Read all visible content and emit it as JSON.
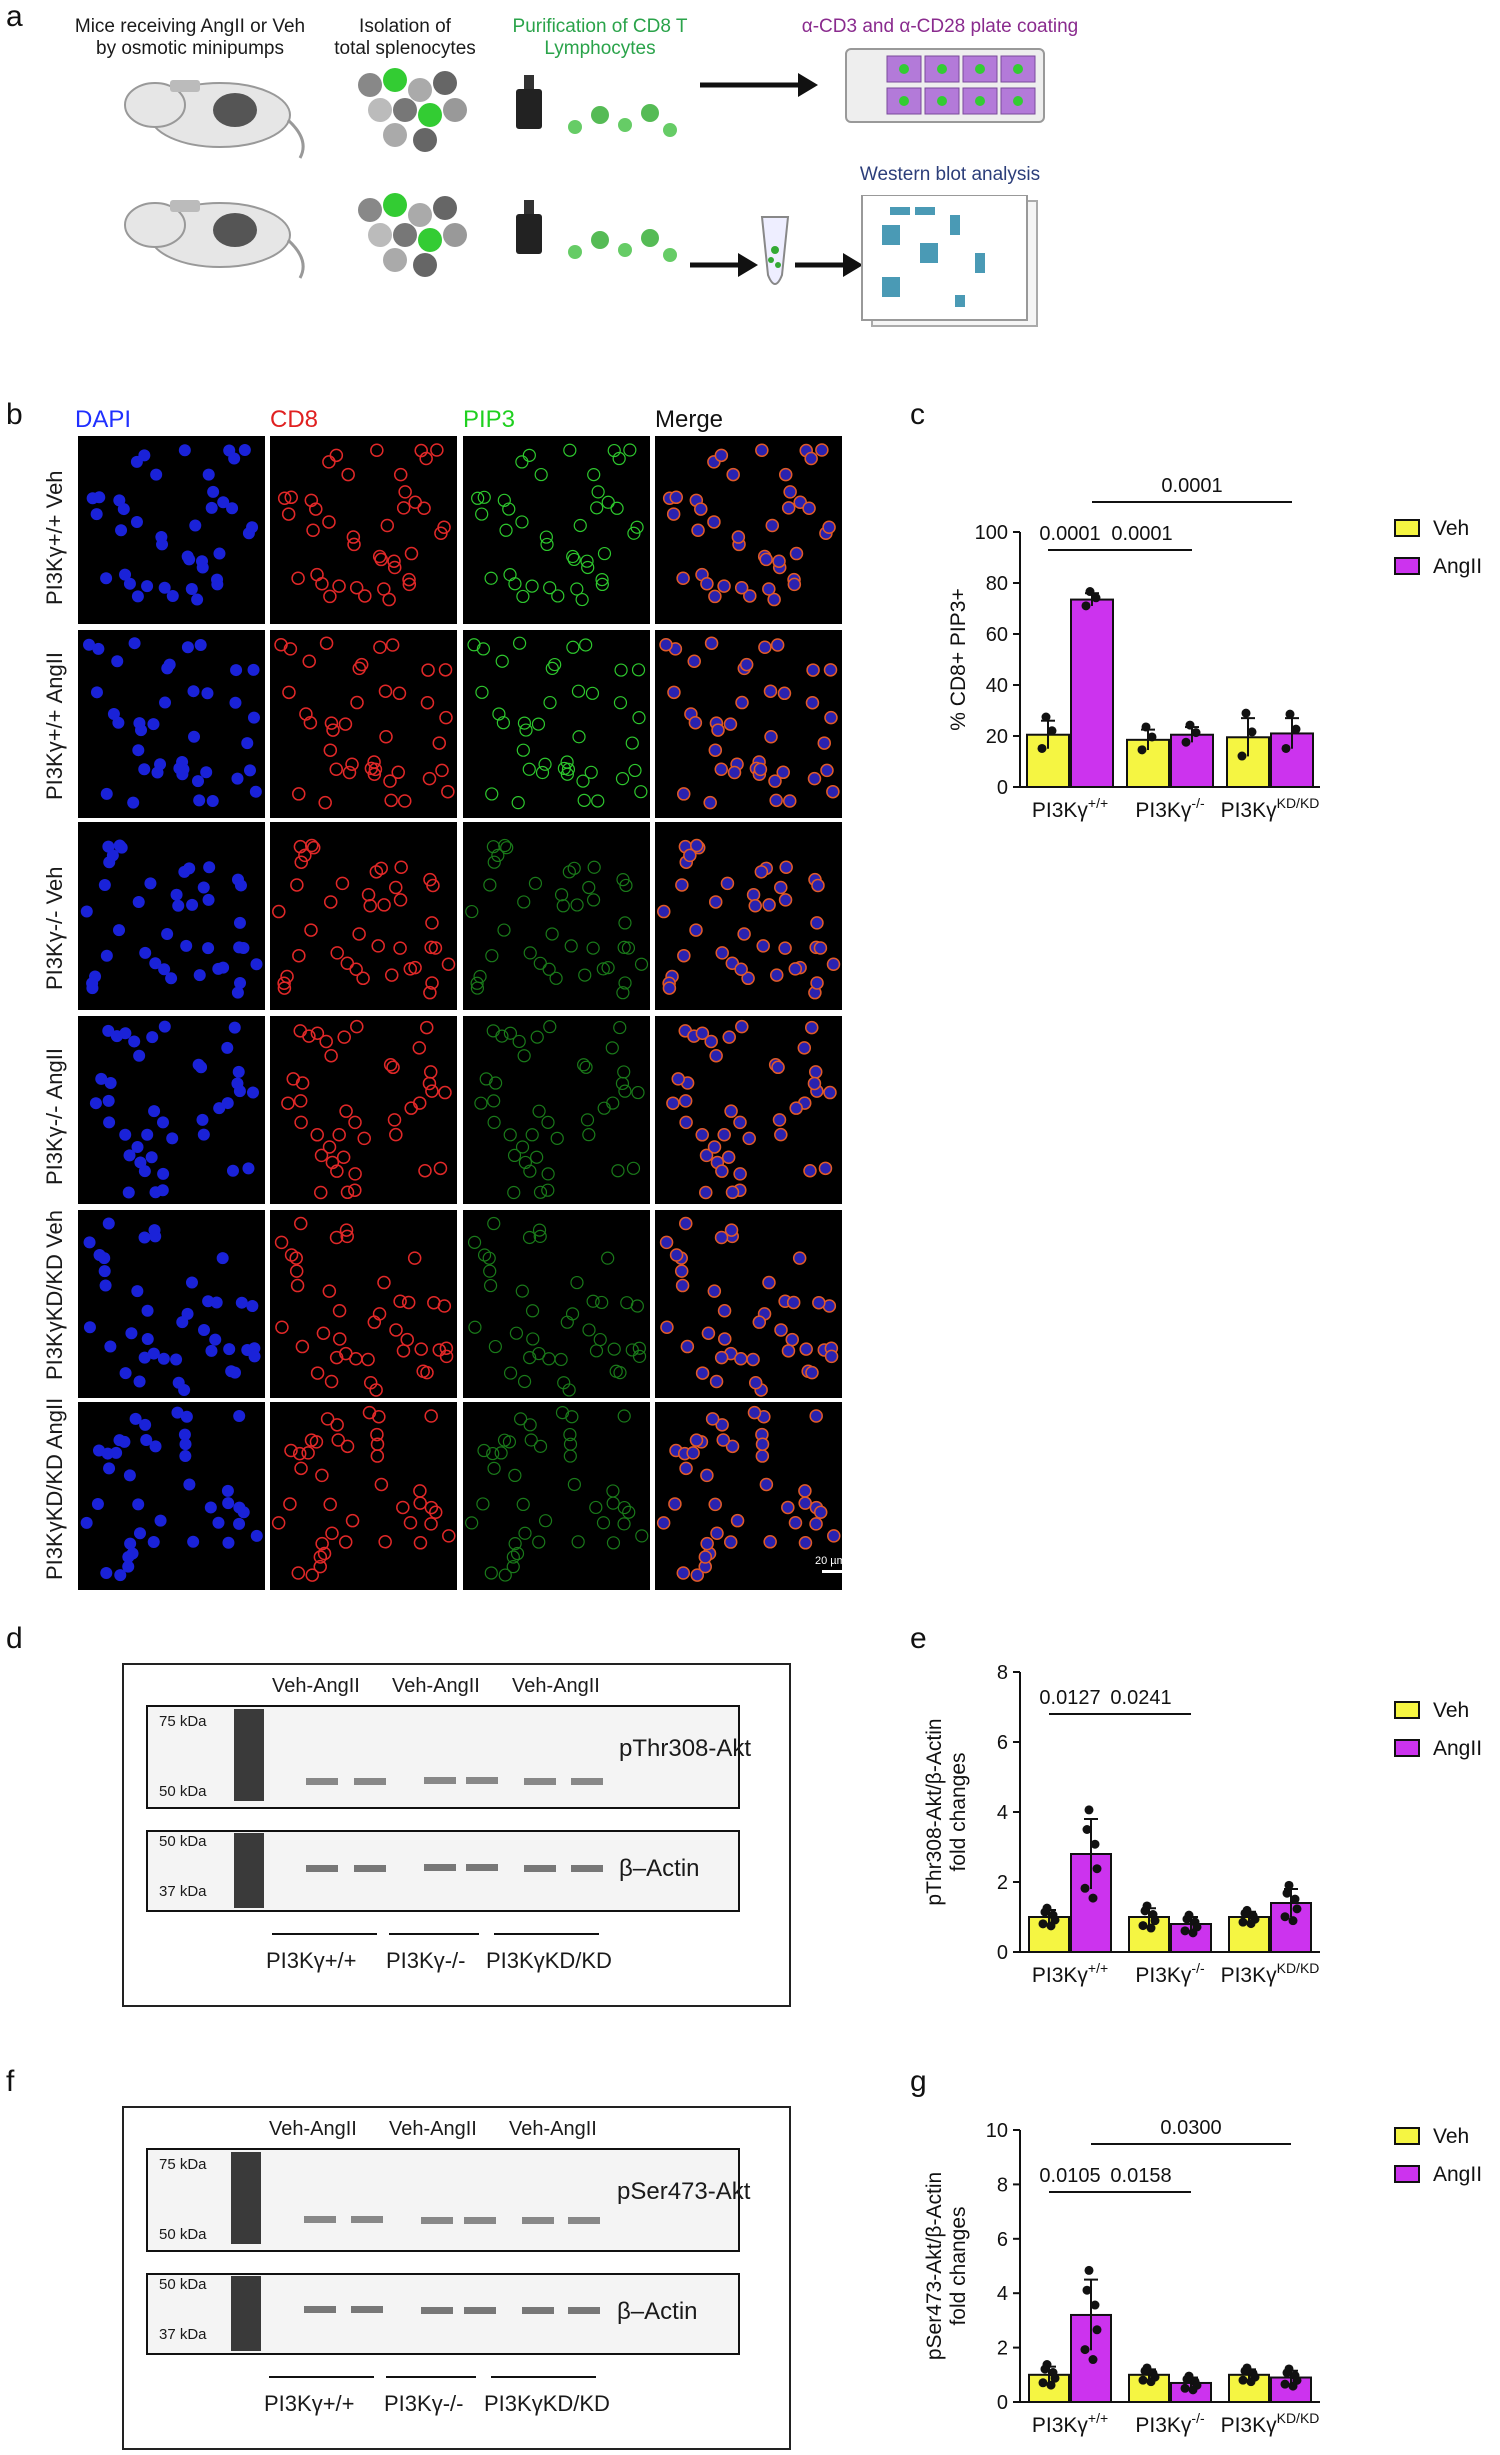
{
  "panel_a": {
    "label": "a",
    "step1": "Mice receiving AngII or Veh\nby osmotic minipumps",
    "step2": "Isolation of\ntotal splenocytes",
    "step3": "Purification of CD8 T\nLymphocytes",
    "step4": "α-CD3 and α-CD28 plate coating",
    "step5": "Western blot analysis"
  },
  "panel_b": {
    "label": "b",
    "columns": [
      "DAPI",
      "CD8",
      "PIP3",
      "Merge"
    ],
    "rows": [
      "PI3Kγ+/+ Veh",
      "PI3Kγ+/+ AngII",
      "PI3Kγ-/- Veh",
      "PI3Kγ-/- AngII",
      "PI3KγKD/KD Veh",
      "PI3KγKD/KD AngII"
    ],
    "scalebar": "20 µm"
  },
  "panel_c": {
    "label": "c",
    "chart_data": {
      "type": "bar",
      "ylabel": "% CD8+ PIP3+",
      "ylim": [
        0,
        100
      ],
      "yticks": [
        "0",
        "20",
        "40",
        "60",
        "80",
        "100"
      ],
      "categories": [
        "PI3Kγ+/+",
        "PI3Kγ-/-",
        "PI3KγKD/KD"
      ],
      "series": [
        {
          "name": "Veh",
          "color": "#f5f542",
          "values": [
            20.5,
            18.5,
            19.5
          ],
          "sem": [
            5.5,
            4.0,
            7.5
          ]
        },
        {
          "name": "AngII",
          "color": "#cc33ee",
          "values": [
            73.5,
            20.5,
            21
          ],
          "sem": [
            2.5,
            3.0,
            6.0
          ]
        }
      ],
      "annotations": [
        {
          "text": "0.0001",
          "from": "PI3Kγ+/+ Veh",
          "to": "PI3Kγ+/+ AngII"
        },
        {
          "text": "0.0001",
          "from": "PI3Kγ+/+ AngII",
          "to": "PI3Kγ-/- AngII"
        },
        {
          "text": "0.0001",
          "from": "PI3Kγ+/+ AngII",
          "to": "PI3KγKD/KD AngII"
        }
      ]
    }
  },
  "panel_d": {
    "label": "d",
    "lane_groups": [
      "Veh-AngII",
      "Veh-AngII",
      "Veh-AngII"
    ],
    "markers_top": [
      "75 kDa",
      "50 kDa"
    ],
    "markers_bottom": [
      "50 kDa",
      "37 kDa"
    ],
    "blot_top": "pThr308-Akt",
    "blot_bottom": "β–Actin",
    "genotypes": [
      "PI3Kγ+/+",
      "PI3Kγ-/-",
      "PI3KγKD/KD"
    ]
  },
  "panel_e": {
    "label": "e",
    "chart_data": {
      "type": "bar",
      "ylabel": "pThr308-Akt/β-Actin\nfold changes",
      "ylim": [
        0,
        8
      ],
      "yticks": [
        "0",
        "2",
        "4",
        "6",
        "8"
      ],
      "categories": [
        "PI3Kγ+/+",
        "PI3Kγ-/-",
        "PI3KγKD/KD"
      ],
      "series": [
        {
          "name": "Veh",
          "color": "#f5f542",
          "values": [
            1.0,
            1.0,
            1.0
          ],
          "sem": [
            0.2,
            0.25,
            0.15
          ]
        },
        {
          "name": "AngII",
          "color": "#cc33ee",
          "values": [
            2.8,
            0.8,
            1.4
          ],
          "sem": [
            1.0,
            0.2,
            0.4
          ]
        }
      ],
      "annotations": [
        {
          "text": "0.0127",
          "from": "PI3Kγ+/+ Veh",
          "to": "PI3Kγ+/+ AngII"
        },
        {
          "text": "0.0241",
          "from": "PI3Kγ+/+ AngII",
          "to": "PI3Kγ-/- AngII"
        }
      ]
    }
  },
  "panel_f": {
    "label": "f",
    "lane_groups": [
      "Veh-AngII",
      "Veh-AngII",
      "Veh-AngII"
    ],
    "markers_top": [
      "75 kDa",
      "50 kDa"
    ],
    "markers_bottom": [
      "50 kDa",
      "37 kDa"
    ],
    "blot_top": "pSer473-Akt",
    "blot_bottom": "β–Actin",
    "genotypes": [
      "PI3Kγ+/+",
      "PI3Kγ-/-",
      "PI3KγKD/KD"
    ]
  },
  "panel_g": {
    "label": "g",
    "chart_data": {
      "type": "bar",
      "ylabel": "pSer473-Akt/β-Actin\nfold changes",
      "ylim": [
        0,
        10
      ],
      "yticks": [
        "0",
        "2",
        "4",
        "6",
        "8",
        "10"
      ],
      "categories": [
        "PI3Kγ+/+",
        "PI3Kγ-/-",
        "PI3KγKD/KD"
      ],
      "series": [
        {
          "name": "Veh",
          "color": "#f5f542",
          "values": [
            1.0,
            1.0,
            1.0
          ],
          "sem": [
            0.3,
            0.2,
            0.2
          ]
        },
        {
          "name": "AngII",
          "color": "#cc33ee",
          "values": [
            3.2,
            0.7,
            0.9
          ],
          "sem": [
            1.3,
            0.2,
            0.25
          ]
        }
      ],
      "annotations": [
        {
          "text": "0.0105",
          "from": "PI3Kγ+/+ Veh",
          "to": "PI3Kγ+/+ AngII"
        },
        {
          "text": "0.0158",
          "from": "PI3Kγ+/+ AngII",
          "to": "PI3Kγ-/- AngII"
        },
        {
          "text": "0.0300",
          "from": "PI3Kγ+/+ AngII",
          "to": "PI3KγKD/KD AngII"
        }
      ]
    }
  }
}
